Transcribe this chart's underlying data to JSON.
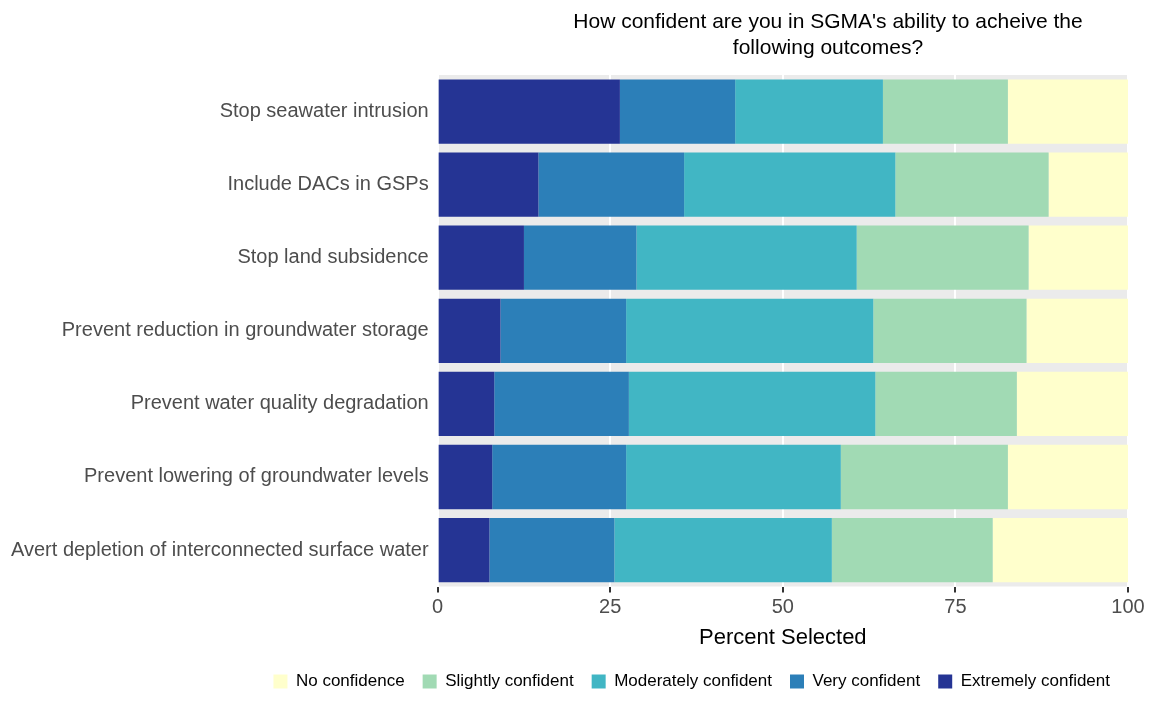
{
  "chart_data": {
    "type": "bar",
    "orientation": "horizontal",
    "stacked": true,
    "title": "How confident are you in SGMA's ability to acheive the following outcomes?",
    "xlabel": "Percent Selected",
    "categories": [
      "Stop seawater intrusion",
      "Include DACs in GSPs",
      "Stop land subsidence",
      "Prevent reduction in groundwater storage",
      "Prevent water quality degradation",
      "Prevent lowering of groundwater levels",
      "Avert depletion of interconnected surface water"
    ],
    "series": [
      {
        "name": "Extremely confident",
        "color": "#253494",
        "values": [
          26.4,
          14.6,
          12.5,
          9.1,
          8.2,
          7.9,
          7.5
        ]
      },
      {
        "name": "Very confident",
        "color": "#2c7fb8",
        "values": [
          16.7,
          21.1,
          16.3,
          18.2,
          19.5,
          19.4,
          18.1
        ]
      },
      {
        "name": "Moderately confident",
        "color": "#41b6c4",
        "values": [
          21.4,
          30.6,
          31.9,
          35.8,
          35.7,
          31.1,
          31.5
        ]
      },
      {
        "name": "Slightly confident",
        "color": "#a1dab4",
        "values": [
          18.1,
          22.2,
          24.9,
          22.2,
          20.5,
          24.2,
          23.3
        ]
      },
      {
        "name": "No confidence",
        "color": "#ffffcc",
        "values": [
          17.4,
          11.5,
          14.4,
          14.7,
          16.1,
          17.4,
          19.6
        ]
      }
    ],
    "xlim": [
      0,
      100
    ],
    "xticks": [
      0,
      25,
      50,
      75,
      100
    ],
    "grid": "x",
    "legend": "bottom"
  }
}
